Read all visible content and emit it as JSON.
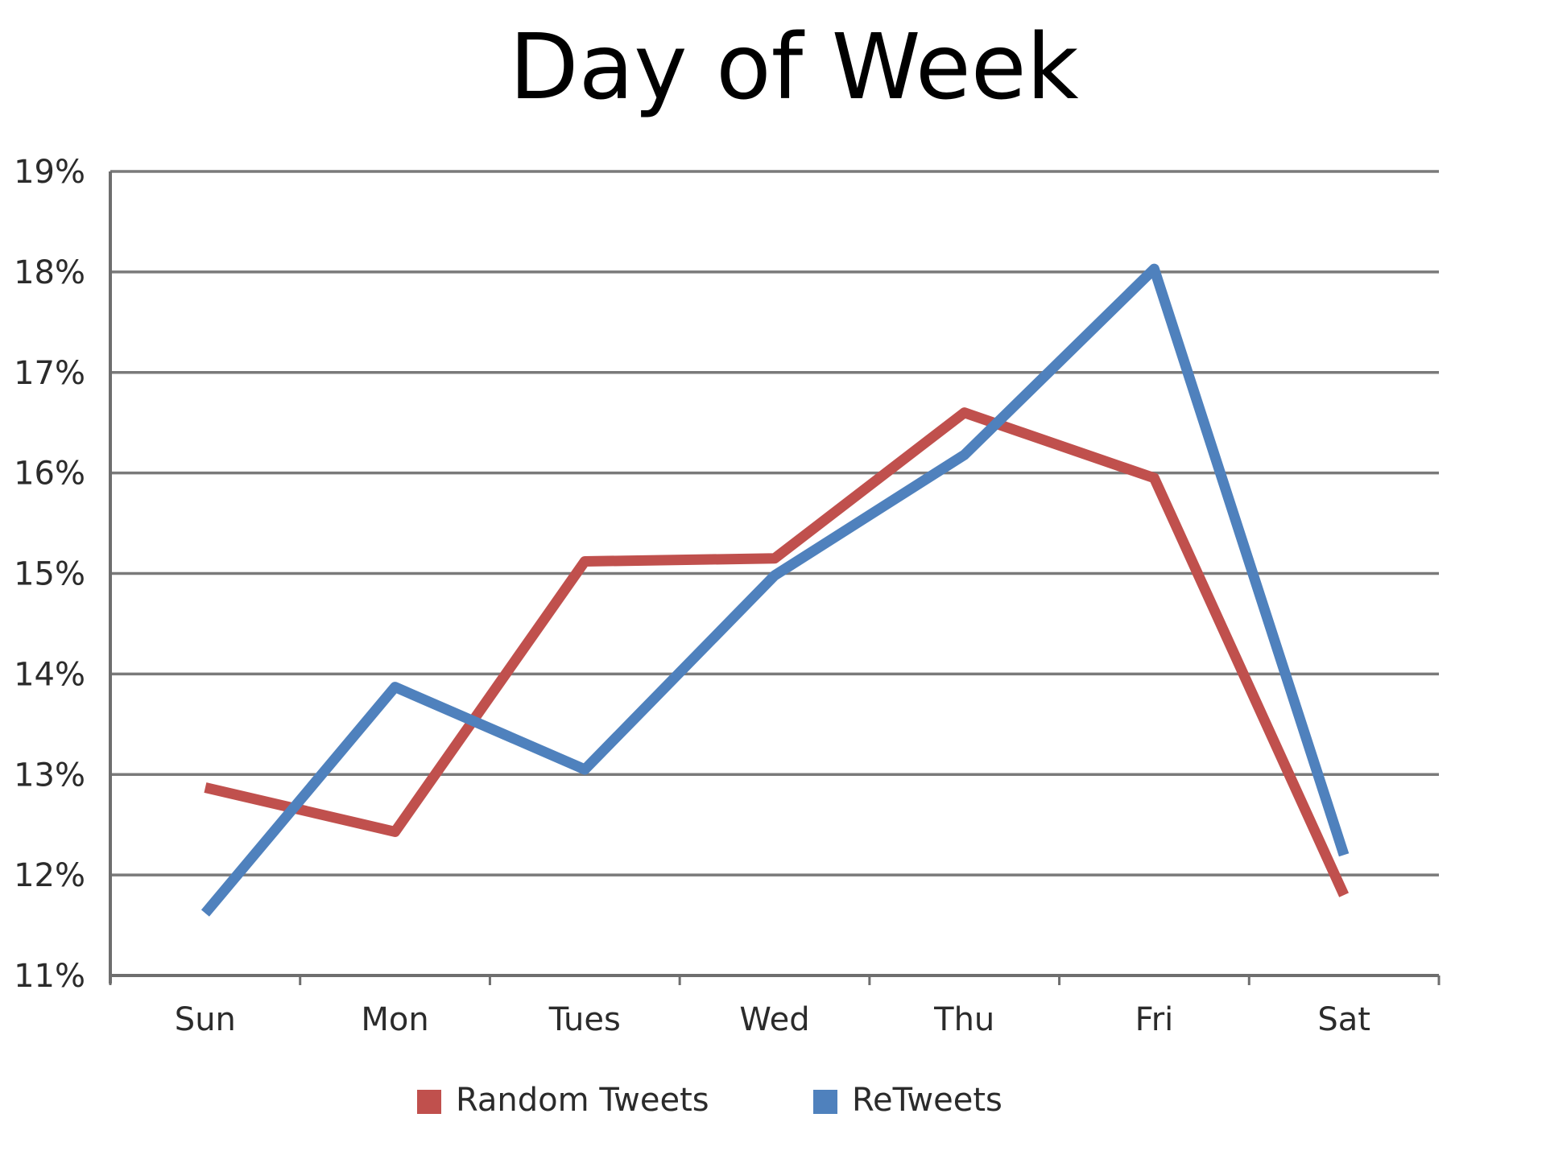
{
  "colors": {
    "random_tweets": "#c0504d",
    "retweets": "#4f81bd"
  },
  "chart_data": {
    "type": "line",
    "title": "Day of Week",
    "xlabel": "",
    "ylabel": "",
    "categories": [
      "Sun",
      "Mon",
      "Tues",
      "Wed",
      "Thu",
      "Fri",
      "Sat"
    ],
    "ylim": [
      11,
      19
    ],
    "yticks": [
      11,
      12,
      13,
      14,
      15,
      16,
      17,
      18,
      19
    ],
    "ytick_labels": [
      "11%",
      "12%",
      "13%",
      "14%",
      "15%",
      "16%",
      "17%",
      "18%",
      "19%"
    ],
    "grid": true,
    "legend_position": "bottom",
    "series": [
      {
        "name": "Random Tweets",
        "color": "#c0504d",
        "values": [
          12.87,
          12.43,
          15.12,
          15.15,
          16.6,
          15.95,
          11.8
        ]
      },
      {
        "name": "ReTweets",
        "color": "#4f81bd",
        "values": [
          11.62,
          13.87,
          13.05,
          14.98,
          16.18,
          18.03,
          12.2
        ]
      }
    ]
  }
}
